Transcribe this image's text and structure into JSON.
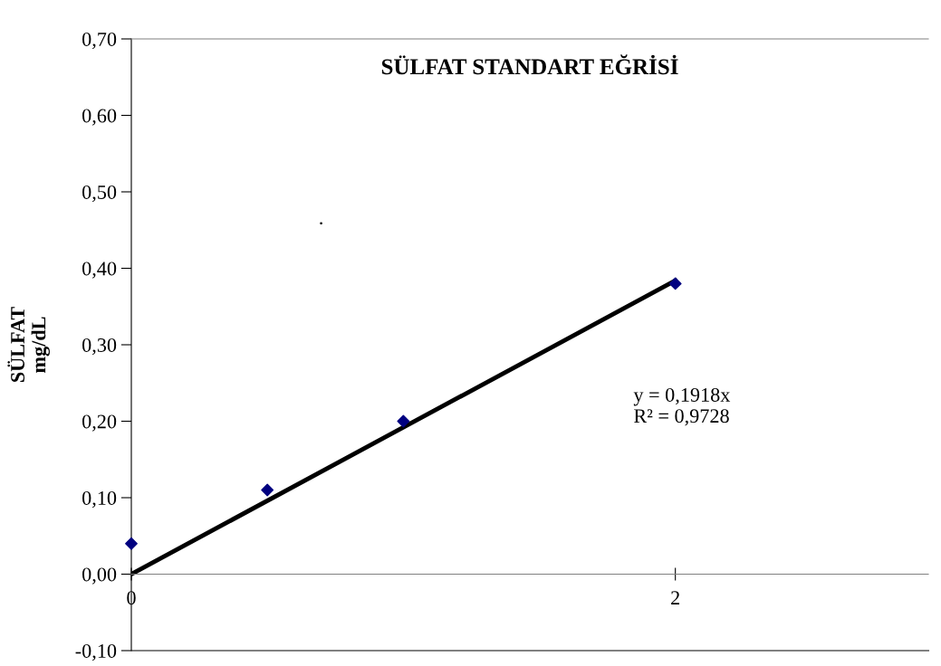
{
  "chart_data": {
    "type": "scatter",
    "title": "SÜLFAT STANDART EĞRİSİ",
    "ylabel": "SÜLFAT\nmg/dL",
    "x": [
      0,
      0.5,
      1,
      2
    ],
    "series": [
      {
        "color": "#000080",
        "marker": "diamond",
        "values": [
          0.04,
          0.11,
          0.2,
          0.38
        ]
      },
      {
        "type": "line",
        "color": "#000000",
        "marker": "none",
        "x": [
          0,
          2
        ],
        "values": [
          0,
          0.384
        ]
      }
    ],
    "annotations": [
      "y = 0,1918x\nR² = 0,9728",
      "."
    ],
    "xlim": [
      0,
      2.93
    ],
    "xticks": [
      0,
      2
    ],
    "ylim": [
      -0.1,
      0.7
    ],
    "yticks": [
      {
        "value": -0.1,
        "label": "-0,10"
      },
      {
        "value": 0,
        "label": "0,00"
      },
      {
        "value": 0.1,
        "label": "0,10"
      },
      {
        "value": 0.2,
        "label": "0,20"
      },
      {
        "value": 0.3,
        "label": "0,30"
      },
      {
        "value": 0.4,
        "label": "0,40"
      },
      {
        "value": 0.5,
        "label": "0,50"
      },
      {
        "value": 0.6,
        "label": "0,60"
      },
      {
        "value": 0.7,
        "label": "0,70"
      }
    ],
    "grid": false,
    "legend": false
  }
}
